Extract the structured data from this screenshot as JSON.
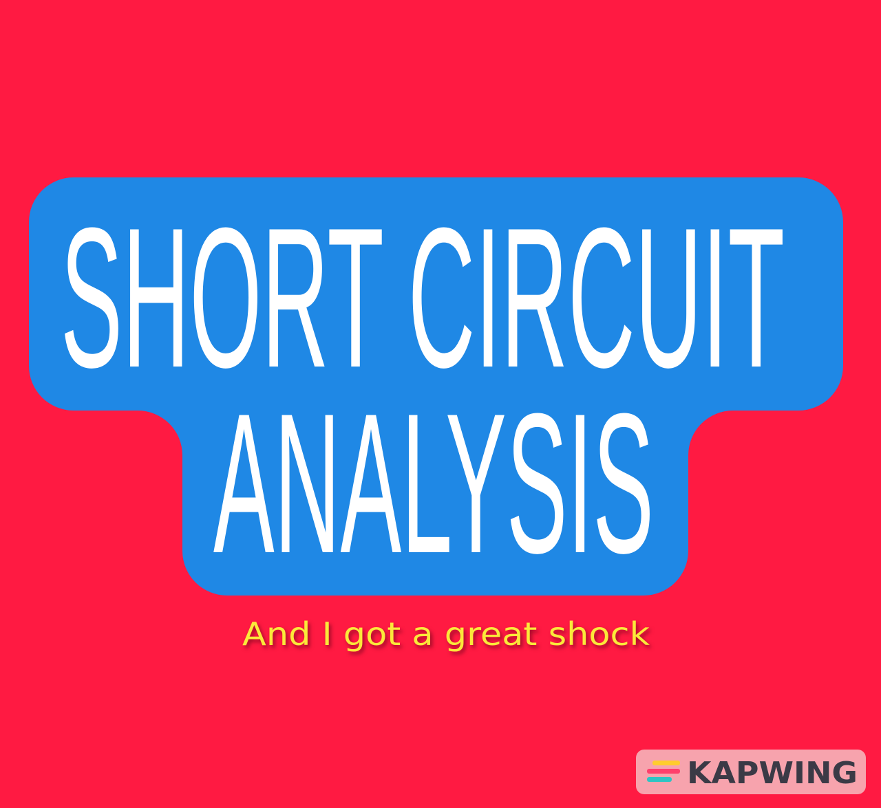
{
  "title": {
    "line1": "SHORT CIRCUIT",
    "line2": "ANALYSIS"
  },
  "subtitle": "And I got a great shock",
  "watermark": "KAPWING"
}
